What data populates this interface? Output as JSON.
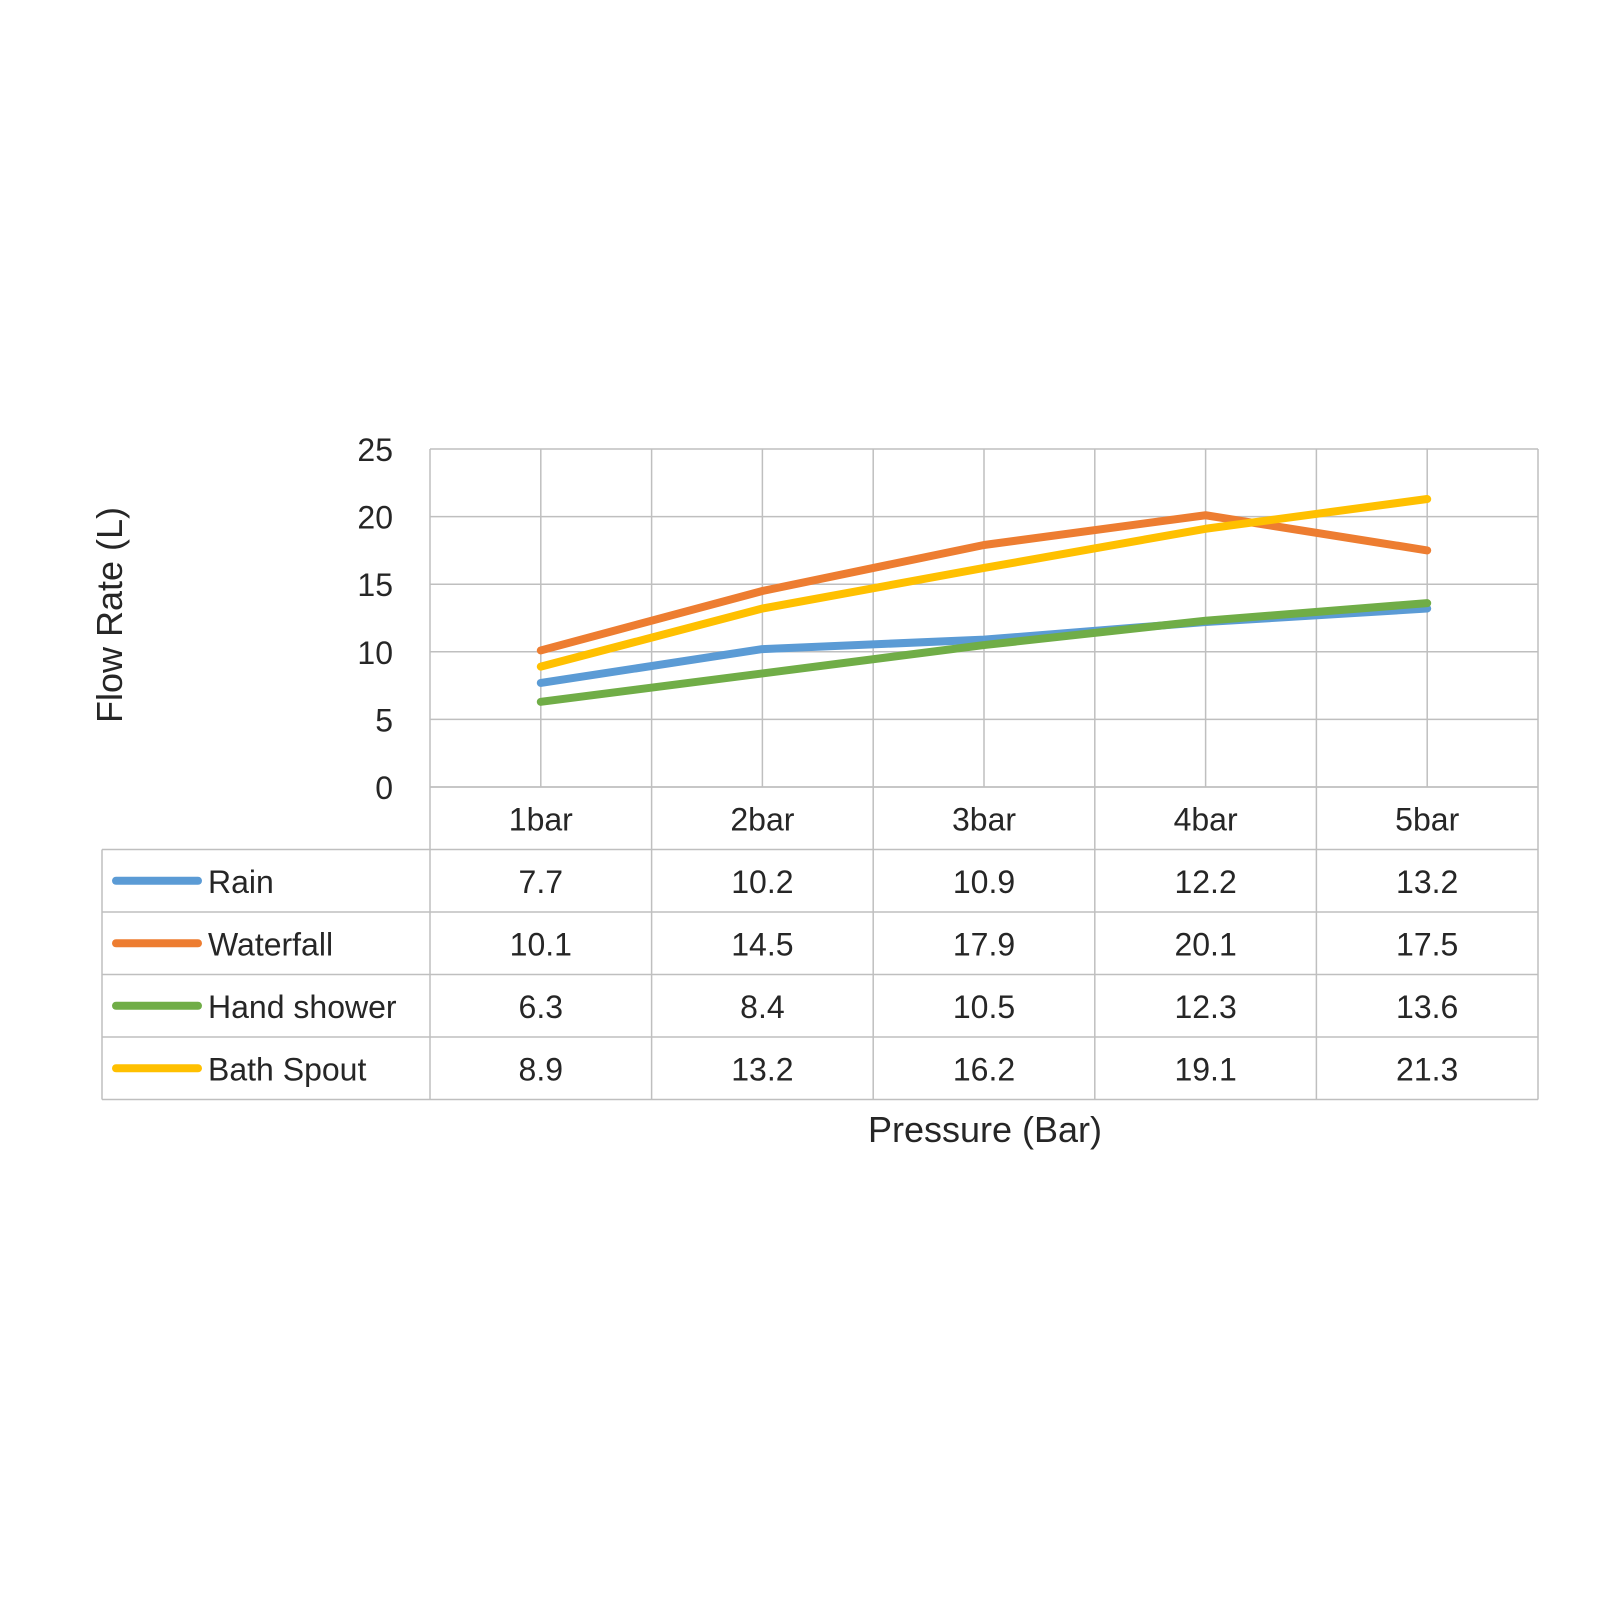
{
  "chart_data": {
    "type": "line",
    "xlabel": "Pressure (Bar)",
    "ylabel": "Flow Rate (L)",
    "categories": [
      "1bar",
      "2bar",
      "3bar",
      "4bar",
      "5bar"
    ],
    "ylim": [
      0,
      25
    ],
    "yticks": [
      "0",
      "5",
      "10",
      "15",
      "20",
      "25"
    ],
    "grid": true,
    "legend": "data-table",
    "series": [
      {
        "name": "Rain",
        "color": "#5B9BD5",
        "values": [
          7.7,
          10.2,
          10.9,
          12.2,
          13.2
        ]
      },
      {
        "name": "Waterfall",
        "color": "#ED7D31",
        "values": [
          10.1,
          14.5,
          17.9,
          20.1,
          17.5
        ]
      },
      {
        "name": "Hand shower",
        "color": "#70AD47",
        "values": [
          6.3,
          8.4,
          10.5,
          12.3,
          13.6
        ]
      },
      {
        "name": "Bath Spout",
        "color": "#FFC000",
        "values": [
          8.9,
          13.2,
          16.2,
          19.1,
          21.3
        ]
      }
    ]
  }
}
